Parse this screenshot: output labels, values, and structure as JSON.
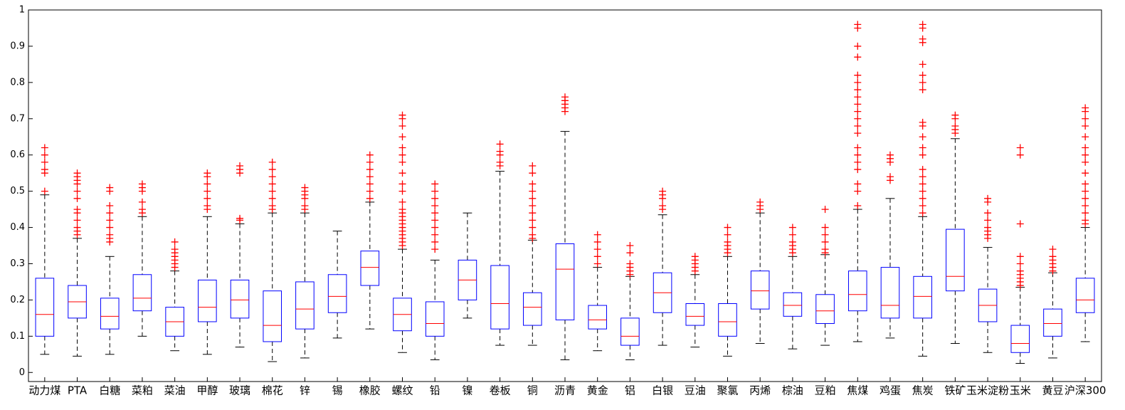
{
  "chart_data": {
    "type": "boxplot",
    "categories": [
      "动力煤",
      "PTA",
      "白糖",
      "菜粕",
      "菜油",
      "甲醇",
      "玻璃",
      "棉花",
      "锌",
      "锡",
      "橡胶",
      "螺纹",
      "铅",
      "镍",
      "卷板",
      "铜",
      "沥青",
      "黄金",
      "铝",
      "白银",
      "豆油",
      "聚氯",
      "丙烯",
      "棕油",
      "豆粕",
      "焦煤",
      "鸡蛋",
      "焦炭",
      "铁矿",
      "玉米淀粉",
      "玉米",
      "黄豆",
      "沪深300"
    ],
    "boxes": [
      {
        "low": 0.05,
        "q1": 0.1,
        "median": 0.16,
        "q3": 0.26,
        "high": 0.49,
        "outliers": [
          0.5,
          0.55,
          0.56,
          0.58,
          0.6,
          0.62
        ]
      },
      {
        "low": 0.045,
        "q1": 0.15,
        "median": 0.195,
        "q3": 0.24,
        "high": 0.37,
        "outliers": [
          0.38,
          0.39,
          0.4,
          0.42,
          0.44,
          0.45,
          0.48,
          0.5,
          0.52,
          0.53,
          0.54,
          0.55
        ]
      },
      {
        "low": 0.05,
        "q1": 0.12,
        "median": 0.155,
        "q3": 0.205,
        "high": 0.32,
        "outliers": [
          0.36,
          0.37,
          0.38,
          0.4,
          0.42,
          0.44,
          0.46,
          0.5,
          0.51
        ]
      },
      {
        "low": 0.1,
        "q1": 0.17,
        "median": 0.205,
        "q3": 0.27,
        "high": 0.43,
        "outliers": [
          0.44,
          0.45,
          0.47,
          0.5,
          0.51,
          0.52
        ]
      },
      {
        "low": 0.06,
        "q1": 0.1,
        "median": 0.14,
        "q3": 0.18,
        "high": 0.28,
        "outliers": [
          0.29,
          0.3,
          0.31,
          0.32,
          0.33,
          0.34,
          0.36
        ]
      },
      {
        "low": 0.05,
        "q1": 0.14,
        "median": 0.18,
        "q3": 0.255,
        "high": 0.43,
        "outliers": [
          0.45,
          0.46,
          0.48,
          0.5,
          0.52,
          0.54,
          0.55
        ]
      },
      {
        "low": 0.07,
        "q1": 0.15,
        "median": 0.2,
        "q3": 0.255,
        "high": 0.41,
        "outliers": [
          0.42,
          0.425,
          0.55,
          0.56,
          0.57
        ]
      },
      {
        "low": 0.03,
        "q1": 0.085,
        "median": 0.13,
        "q3": 0.225,
        "high": 0.44,
        "outliers": [
          0.45,
          0.46,
          0.48,
          0.5,
          0.52,
          0.54,
          0.56,
          0.58
        ]
      },
      {
        "low": 0.04,
        "q1": 0.12,
        "median": 0.175,
        "q3": 0.25,
        "high": 0.44,
        "outliers": [
          0.45,
          0.46,
          0.48,
          0.49,
          0.5,
          0.51
        ]
      },
      {
        "low": 0.095,
        "q1": 0.165,
        "median": 0.21,
        "q3": 0.27,
        "high": 0.39,
        "outliers": []
      },
      {
        "low": 0.12,
        "q1": 0.24,
        "median": 0.29,
        "q3": 0.335,
        "high": 0.47,
        "outliers": [
          0.48,
          0.5,
          0.52,
          0.54,
          0.56,
          0.58,
          0.6
        ]
      },
      {
        "low": 0.055,
        "q1": 0.115,
        "median": 0.16,
        "q3": 0.205,
        "high": 0.34,
        "outliers": [
          0.35,
          0.36,
          0.37,
          0.38,
          0.39,
          0.4,
          0.41,
          0.42,
          0.43,
          0.44,
          0.45,
          0.47,
          0.5,
          0.52,
          0.55,
          0.58,
          0.6,
          0.62,
          0.65,
          0.68,
          0.7,
          0.71
        ]
      },
      {
        "low": 0.035,
        "q1": 0.1,
        "median": 0.135,
        "q3": 0.195,
        "high": 0.31,
        "outliers": [
          0.34,
          0.36,
          0.38,
          0.4,
          0.42,
          0.44,
          0.46,
          0.48,
          0.5,
          0.52
        ]
      },
      {
        "low": 0.15,
        "q1": 0.2,
        "median": 0.255,
        "q3": 0.31,
        "high": 0.44,
        "outliers": []
      },
      {
        "low": 0.075,
        "q1": 0.12,
        "median": 0.19,
        "q3": 0.295,
        "high": 0.555,
        "outliers": [
          0.57,
          0.58,
          0.6,
          0.61,
          0.63
        ]
      },
      {
        "low": 0.075,
        "q1": 0.13,
        "median": 0.18,
        "q3": 0.22,
        "high": 0.365,
        "outliers": [
          0.37,
          0.38,
          0.4,
          0.42,
          0.44,
          0.46,
          0.48,
          0.5,
          0.52,
          0.55,
          0.57
        ]
      },
      {
        "low": 0.035,
        "q1": 0.145,
        "median": 0.285,
        "q3": 0.355,
        "high": 0.665,
        "outliers": [
          0.72,
          0.73,
          0.74,
          0.75,
          0.76
        ]
      },
      {
        "low": 0.06,
        "q1": 0.12,
        "median": 0.145,
        "q3": 0.185,
        "high": 0.29,
        "outliers": [
          0.3,
          0.32,
          0.34,
          0.36,
          0.38
        ]
      },
      {
        "low": 0.035,
        "q1": 0.075,
        "median": 0.1,
        "q3": 0.15,
        "high": 0.265,
        "outliers": [
          0.27,
          0.28,
          0.29,
          0.3,
          0.33,
          0.35
        ]
      },
      {
        "low": 0.075,
        "q1": 0.165,
        "median": 0.22,
        "q3": 0.275,
        "high": 0.435,
        "outliers": [
          0.45,
          0.46,
          0.48,
          0.49,
          0.5
        ]
      },
      {
        "low": 0.07,
        "q1": 0.13,
        "median": 0.155,
        "q3": 0.19,
        "high": 0.27,
        "outliers": [
          0.28,
          0.29,
          0.3,
          0.31,
          0.32
        ]
      },
      {
        "low": 0.045,
        "q1": 0.1,
        "median": 0.14,
        "q3": 0.19,
        "high": 0.32,
        "outliers": [
          0.33,
          0.34,
          0.35,
          0.36,
          0.38,
          0.4
        ]
      },
      {
        "low": 0.08,
        "q1": 0.175,
        "median": 0.225,
        "q3": 0.28,
        "high": 0.44,
        "outliers": [
          0.45,
          0.46,
          0.47
        ]
      },
      {
        "low": 0.065,
        "q1": 0.155,
        "median": 0.185,
        "q3": 0.22,
        "high": 0.32,
        "outliers": [
          0.33,
          0.34,
          0.35,
          0.36,
          0.38,
          0.4
        ]
      },
      {
        "low": 0.075,
        "q1": 0.135,
        "median": 0.17,
        "q3": 0.215,
        "high": 0.325,
        "outliers": [
          0.33,
          0.34,
          0.36,
          0.38,
          0.4,
          0.45
        ]
      },
      {
        "low": 0.085,
        "q1": 0.17,
        "median": 0.215,
        "q3": 0.28,
        "high": 0.45,
        "outliers": [
          0.46,
          0.5,
          0.52,
          0.56,
          0.58,
          0.6,
          0.62,
          0.66,
          0.68,
          0.7,
          0.72,
          0.74,
          0.76,
          0.78,
          0.8,
          0.82,
          0.87,
          0.9,
          0.95,
          0.96
        ]
      },
      {
        "low": 0.095,
        "q1": 0.15,
        "median": 0.185,
        "q3": 0.29,
        "high": 0.48,
        "outliers": [
          0.53,
          0.54,
          0.58,
          0.59,
          0.6
        ]
      },
      {
        "low": 0.045,
        "q1": 0.15,
        "median": 0.21,
        "q3": 0.265,
        "high": 0.43,
        "outliers": [
          0.44,
          0.46,
          0.48,
          0.5,
          0.52,
          0.54,
          0.56,
          0.6,
          0.62,
          0.65,
          0.68,
          0.69,
          0.78,
          0.8,
          0.82,
          0.85,
          0.91,
          0.92,
          0.95,
          0.96
        ]
      },
      {
        "low": 0.08,
        "q1": 0.225,
        "median": 0.265,
        "q3": 0.395,
        "high": 0.645,
        "outliers": [
          0.66,
          0.67,
          0.68,
          0.7,
          0.71
        ]
      },
      {
        "low": 0.055,
        "q1": 0.14,
        "median": 0.185,
        "q3": 0.23,
        "high": 0.345,
        "outliers": [
          0.37,
          0.38,
          0.39,
          0.4,
          0.42,
          0.44,
          0.47,
          0.48
        ]
      },
      {
        "low": 0.025,
        "q1": 0.055,
        "median": 0.08,
        "q3": 0.13,
        "high": 0.235,
        "outliers": [
          0.24,
          0.25,
          0.26,
          0.27,
          0.28,
          0.3,
          0.32,
          0.41,
          0.6,
          0.62
        ]
      },
      {
        "low": 0.04,
        "q1": 0.1,
        "median": 0.135,
        "q3": 0.175,
        "high": 0.275,
        "outliers": [
          0.28,
          0.29,
          0.3,
          0.31,
          0.32,
          0.34
        ]
      },
      {
        "low": 0.085,
        "q1": 0.165,
        "median": 0.2,
        "q3": 0.26,
        "high": 0.4,
        "outliers": [
          0.41,
          0.42,
          0.44,
          0.46,
          0.48,
          0.5,
          0.52,
          0.55,
          0.58,
          0.6,
          0.62,
          0.65,
          0.68,
          0.7,
          0.72,
          0.73
        ]
      }
    ],
    "box_color": "#0000ff",
    "median_color": "#ff0000",
    "whisker_color": "#000000",
    "outlier_color": "#ff0000",
    "ylim": [
      -0.025,
      1
    ],
    "yticks": [
      0,
      0.1,
      0.2,
      0.3,
      0.4,
      0.5,
      0.6,
      0.7,
      0.8,
      0.9,
      1
    ]
  }
}
